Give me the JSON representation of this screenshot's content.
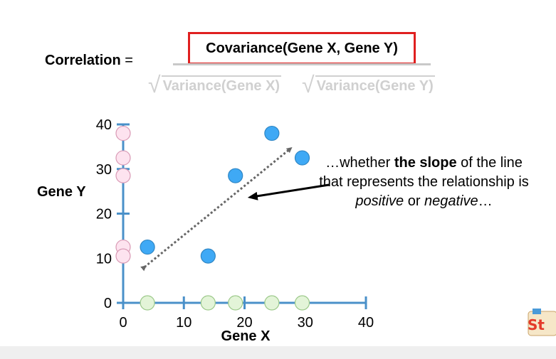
{
  "formula": {
    "label_bold": "Correlation",
    "label_equals": " =",
    "numerator": "Covariance(Gene X, Gene Y)",
    "denominator_left": "Variance(Gene X)",
    "denominator_right": "Variance(Gene Y)"
  },
  "chart_data": {
    "type": "scatter",
    "xlabel": "Gene X",
    "ylabel": "Gene Y",
    "xlim": [
      0,
      40
    ],
    "ylim": [
      0,
      40
    ],
    "x_ticks": [
      0,
      10,
      20,
      30,
      40
    ],
    "y_ticks": [
      0,
      10,
      20,
      30,
      40
    ],
    "series": [
      {
        "role": "paired points",
        "x": [
          4,
          14,
          18.5,
          24.5,
          29.5
        ],
        "y": [
          12.5,
          10.5,
          28.5,
          38,
          32.5
        ],
        "color": "#3fa9f5"
      },
      {
        "role": "y-axis projections",
        "x": [
          0,
          0,
          0,
          0,
          0
        ],
        "y": [
          12.5,
          10.5,
          28.5,
          38,
          32.5
        ],
        "color": "#fde3ef"
      },
      {
        "role": "x-axis projections",
        "x": [
          4,
          14,
          18.5,
          24.5,
          29.5
        ],
        "y": [
          0,
          0,
          0,
          0,
          0
        ],
        "color": "#e3f4d8"
      }
    ],
    "slope_arrow": {
      "from": [
        3.5,
        8
      ],
      "to": [
        27.5,
        34.5
      ],
      "style": "dotted",
      "color": "#666666"
    },
    "pointer_arrow": {
      "tip": [
        20.5,
        24
      ],
      "color": "#000000"
    }
  },
  "annotation": {
    "part1": "…whether ",
    "part2_bold": "the slope",
    "part3": " of the line that represents the relationship is ",
    "part4_italic": "positive",
    "part5": " or ",
    "part6_italic": "negative",
    "part7": "…"
  },
  "logo": {
    "name": "statquest-logo-icon"
  }
}
